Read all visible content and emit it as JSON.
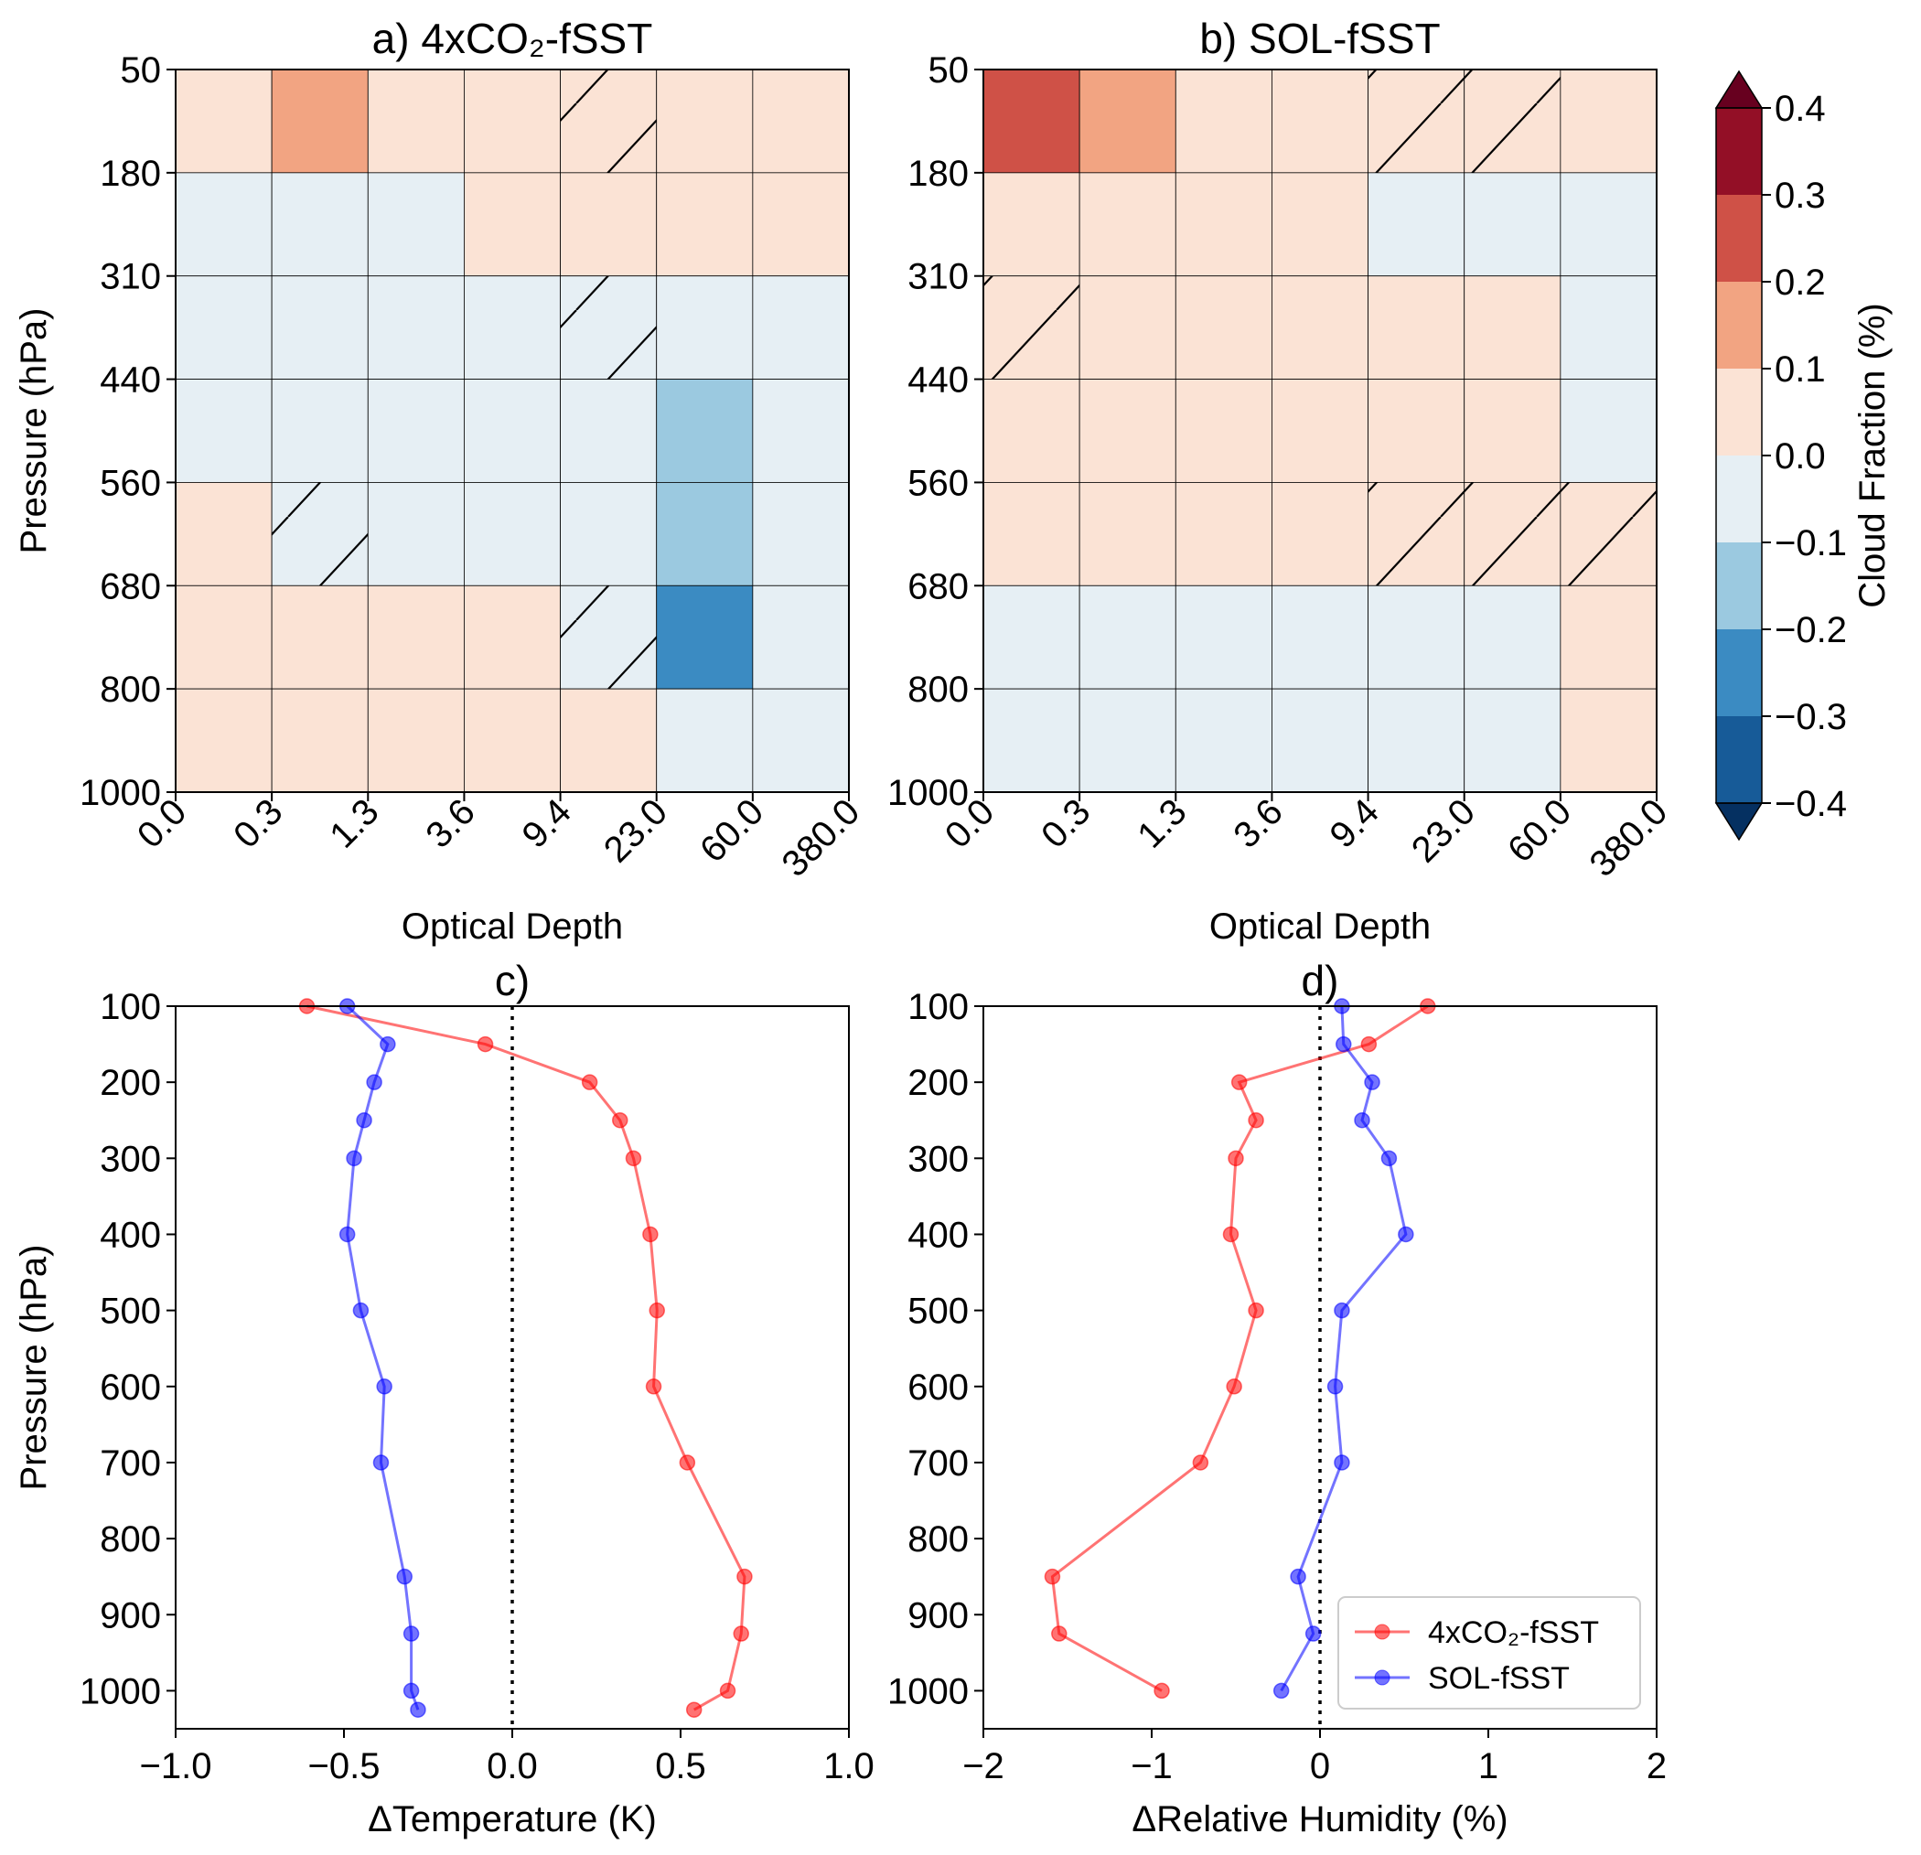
{
  "chart_data": [
    {
      "id": "a",
      "type": "heatmap",
      "title": "a) 4xCO₂-fSST",
      "xlabel": "Optical Depth",
      "ylabel": "Pressure (hPa)",
      "x_bins": [
        "0.0",
        "0.3",
        "1.3",
        "3.6",
        "9.4",
        "23.0",
        "60.0",
        "380.0"
      ],
      "y_bins": [
        "50",
        "180",
        "310",
        "440",
        "560",
        "680",
        "800",
        "1000"
      ],
      "values": [
        [
          0.08,
          0.15,
          0.03,
          0.0,
          0.0,
          0.0,
          0.0
        ],
        [
          -0.07,
          -0.04,
          -0.03,
          0.01,
          0.01,
          0.01,
          0.08
        ],
        [
          -0.07,
          -0.02,
          -0.02,
          -0.01,
          -0.02,
          -0.05,
          -0.1
        ],
        [
          -0.07,
          -0.04,
          -0.04,
          -0.04,
          -0.04,
          -0.13,
          -0.1
        ],
        [
          0.0,
          -0.01,
          -0.04,
          -0.05,
          -0.05,
          -0.17,
          -0.06
        ],
        [
          0.01,
          0.0,
          0.01,
          0.02,
          -0.01,
          -0.22,
          -0.07
        ],
        [
          0.02,
          0.0,
          0.01,
          0.02,
          0.02,
          -0.05,
          -0.01
        ]
      ],
      "hatched": [
        [
          0,
          4
        ],
        [
          2,
          4
        ],
        [
          4,
          1
        ],
        [
          5,
          4
        ]
      ]
    },
    {
      "id": "b",
      "type": "heatmap",
      "title": "b) SOL-fSST",
      "xlabel": "Optical Depth",
      "ylabel": "",
      "x_bins": [
        "0.0",
        "0.3",
        "1.3",
        "3.6",
        "9.4",
        "23.0",
        "60.0",
        "380.0"
      ],
      "y_bins": [
        "50",
        "180",
        "310",
        "440",
        "560",
        "680",
        "800",
        "1000"
      ],
      "values": [
        [
          0.24,
          0.13,
          0.05,
          0.0,
          0.0,
          0.0,
          0.0
        ],
        [
          0.03,
          0.02,
          0.02,
          0.01,
          -0.01,
          -0.04,
          -0.09
        ],
        [
          0.0,
          0.0,
          0.0,
          0.02,
          0.03,
          0.04,
          -0.02
        ],
        [
          0.01,
          0.0,
          0.0,
          0.0,
          0.03,
          0.04,
          -0.01
        ],
        [
          0.0,
          0.0,
          0.0,
          0.0,
          0.0,
          0.0,
          0.0
        ],
        [
          -0.02,
          -0.01,
          -0.01,
          -0.03,
          -0.04,
          -0.02,
          0.0
        ],
        [
          -0.03,
          -0.01,
          -0.01,
          -0.04,
          -0.05,
          -0.03,
          0.0
        ]
      ],
      "hatched": [
        [
          0,
          4
        ],
        [
          0,
          5
        ],
        [
          2,
          0
        ],
        [
          4,
          4
        ],
        [
          4,
          5
        ],
        [
          4,
          6
        ]
      ]
    },
    {
      "id": "colorbar",
      "type": "colorbar",
      "label": "Cloud Fraction (%)",
      "levels": [
        -0.4,
        -0.3,
        -0.2,
        -0.1,
        0.0,
        0.1,
        0.2,
        0.3,
        0.4
      ],
      "tick_labels": [
        "0.4",
        "0.3",
        "0.2",
        "0.1",
        "0.0",
        "−0.1",
        "−0.2",
        "−0.3",
        "−0.4"
      ],
      "colors": [
        "#175b98",
        "#3b8bc2",
        "#9bc9e0",
        "#e6eff4",
        "#fbe3d5",
        "#f2a482",
        "#cf5147",
        "#930f26"
      ],
      "over_color": "#67001f",
      "under_color": "#053061"
    },
    {
      "id": "c",
      "type": "line",
      "title": "c)",
      "xlabel": "ΔTemperature (K)",
      "ylabel": "Pressure (hPa)",
      "xlim": [
        -1.0,
        1.0
      ],
      "ylim": [
        1050,
        100
      ],
      "x_tick_labels": [
        "−1.0",
        "−0.5",
        "0.0",
        "0.5",
        "1.0"
      ],
      "x_ticks": [
        -1.0,
        -0.5,
        0.0,
        0.5,
        1.0
      ],
      "y_ticks": [
        100,
        200,
        300,
        400,
        500,
        600,
        700,
        800,
        900,
        1000
      ],
      "series": [
        {
          "name": "4xCO₂-fSST",
          "color": "#ff0000",
          "x": [
            -0.61,
            -0.08,
            0.23,
            0.32,
            0.36,
            0.41,
            0.43,
            0.42,
            0.52,
            0.69,
            0.68,
            0.64,
            0.54
          ],
          "y": [
            100,
            150,
            200,
            250,
            300,
            400,
            500,
            600,
            700,
            850,
            925,
            1000,
            1025
          ]
        },
        {
          "name": "SOL-fSST",
          "color": "#0000ff",
          "x": [
            -0.49,
            -0.37,
            -0.41,
            -0.44,
            -0.47,
            -0.49,
            -0.45,
            -0.38,
            -0.39,
            -0.32,
            -0.3,
            -0.3,
            -0.28
          ],
          "y": [
            100,
            150,
            200,
            250,
            300,
            400,
            500,
            600,
            700,
            850,
            925,
            1000,
            1025
          ]
        }
      ]
    },
    {
      "id": "d",
      "type": "line",
      "title": "d)",
      "xlabel": "ΔRelative Humidity (%)",
      "ylabel": "",
      "xlim": [
        -2,
        2
      ],
      "ylim": [
        1050,
        100
      ],
      "x_tick_labels": [
        "−2",
        "−1",
        "0",
        "1",
        "2"
      ],
      "x_ticks": [
        -2,
        -1,
        0,
        1,
        2
      ],
      "y_ticks": [
        100,
        200,
        300,
        400,
        500,
        600,
        700,
        800,
        900,
        1000
      ],
      "series": [
        {
          "name": "4xCO₂-fSST",
          "color": "#ff0000",
          "x": [
            0.64,
            0.29,
            -0.48,
            -0.38,
            -0.5,
            -0.53,
            -0.38,
            -0.51,
            -0.71,
            -1.59,
            -1.55,
            -0.94
          ],
          "y": [
            100,
            150,
            200,
            250,
            300,
            400,
            500,
            600,
            700,
            850,
            925,
            1000
          ]
        },
        {
          "name": "SOL-fSST",
          "color": "#0000ff",
          "x": [
            0.13,
            0.14,
            0.31,
            0.25,
            0.41,
            0.51,
            0.13,
            0.09,
            0.13,
            -0.13,
            -0.04,
            -0.23
          ],
          "y": [
            100,
            150,
            200,
            250,
            300,
            400,
            500,
            600,
            700,
            850,
            925,
            1000
          ]
        }
      ],
      "legend": {
        "location": "lower-right",
        "entries": [
          "4xCO₂-fSST",
          "SOL-fSST"
        ]
      }
    }
  ]
}
